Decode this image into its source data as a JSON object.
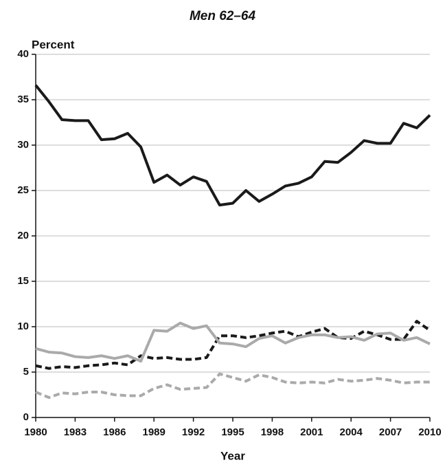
{
  "chart_data": {
    "type": "line",
    "title": "Men 62–64",
    "y_axis_label": "Percent",
    "x_axis_label": "Year",
    "x": [
      1980,
      1981,
      1982,
      1983,
      1984,
      1985,
      1986,
      1987,
      1988,
      1989,
      1990,
      1991,
      1992,
      1993,
      1994,
      1995,
      1996,
      1997,
      1998,
      1999,
      2000,
      2001,
      2002,
      2003,
      2004,
      2005,
      2006,
      2007,
      2008,
      2009,
      2010
    ],
    "series": [
      {
        "color": "#1a1a1a",
        "dashed": false,
        "values": [
          36.6,
          34.8,
          32.8,
          32.7,
          32.7,
          30.6,
          30.7,
          31.3,
          29.8,
          25.9,
          26.7,
          25.6,
          26.5,
          26.0,
          23.4,
          23.6,
          25.0,
          23.8,
          24.6,
          25.5,
          25.8,
          26.5,
          28.2,
          28.1,
          29.2,
          30.5,
          30.2,
          30.2,
          32.4,
          31.9,
          33.3
        ]
      },
      {
        "color": "#1a1a1a",
        "dashed": true,
        "values": [
          5.7,
          5.4,
          5.6,
          5.5,
          5.7,
          5.8,
          6.0,
          5.8,
          6.8,
          6.5,
          6.6,
          6.4,
          6.4,
          6.6,
          9.0,
          9.0,
          8.8,
          9.0,
          9.3,
          9.5,
          8.9,
          9.4,
          9.8,
          8.8,
          8.7,
          9.5,
          9.1,
          8.6,
          8.6,
          10.6,
          9.6
        ]
      },
      {
        "color": "#aaaaaa",
        "dashed": false,
        "values": [
          7.6,
          7.2,
          7.1,
          6.7,
          6.6,
          6.8,
          6.5,
          6.8,
          6.2,
          9.6,
          9.5,
          10.4,
          9.8,
          10.1,
          8.2,
          8.1,
          7.8,
          8.7,
          9.0,
          8.2,
          8.8,
          9.1,
          9.1,
          8.8,
          8.9,
          8.5,
          9.2,
          9.3,
          8.5,
          8.8,
          8.1
        ]
      },
      {
        "color": "#aaaaaa",
        "dashed": true,
        "values": [
          2.8,
          2.2,
          2.7,
          2.6,
          2.8,
          2.8,
          2.5,
          2.4,
          2.4,
          3.2,
          3.6,
          3.1,
          3.2,
          3.3,
          4.8,
          4.4,
          4.0,
          4.7,
          4.4,
          3.9,
          3.8,
          3.9,
          3.8,
          4.2,
          4.0,
          4.1,
          4.3,
          4.1,
          3.8,
          3.9,
          3.9
        ]
      }
    ],
    "xlim": [
      1980,
      2010
    ],
    "xticks": [
      1980,
      1983,
      1986,
      1989,
      1992,
      1995,
      1998,
      2001,
      2004,
      2007,
      2010
    ],
    "ylim": [
      0,
      40
    ],
    "yticks": [
      0,
      5,
      10,
      15,
      20,
      25,
      30,
      35,
      40
    ],
    "grid": true
  }
}
